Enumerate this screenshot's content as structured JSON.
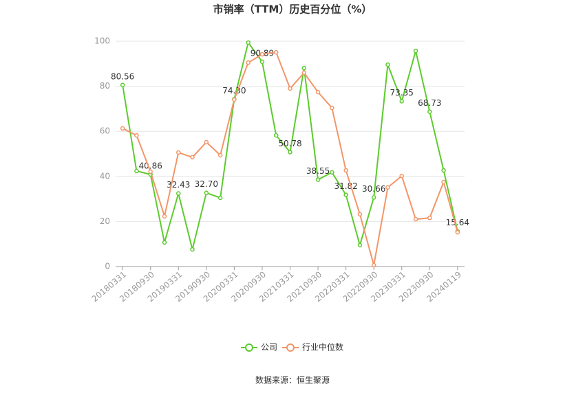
{
  "chart_data": {
    "type": "line",
    "title": "市销率（TTM）历史百分位（%）",
    "source": "数据来源：恒生聚源",
    "categories": [
      "20180331",
      null,
      "20180930",
      null,
      "20190331",
      null,
      "20190930",
      null,
      "20200331",
      null,
      "20200930",
      null,
      "20210331",
      null,
      "20210930",
      null,
      "20220331",
      null,
      "20220930",
      null,
      "20230331",
      null,
      "20230930",
      null,
      "20240119"
    ],
    "series": [
      {
        "name": "公司",
        "color": "#5ccc2c",
        "values": [
          80.56,
          42.4,
          40.86,
          10.7,
          32.43,
          7.6,
          32.7,
          30.5,
          74.3,
          99.4,
          90.89,
          58.2,
          50.78,
          88.1,
          38.55,
          41.8,
          31.82,
          9.5,
          30.66,
          89.6,
          73.35,
          95.7,
          68.73,
          42.7,
          15.64
        ],
        "value_labels": [
          "80.56",
          null,
          "40.86",
          null,
          "32.43",
          null,
          "32.70",
          null,
          "74.30",
          null,
          "90.89",
          null,
          "50.78",
          null,
          "38.55",
          null,
          "31.82",
          null,
          "30.66",
          null,
          "73.35",
          null,
          "68.73",
          null,
          "15.64"
        ]
      },
      {
        "name": "行业中位数",
        "color": "#f39568",
        "values": [
          61.3,
          58.2,
          42.1,
          22.3,
          50.6,
          48.5,
          55.2,
          49.4,
          74.1,
          90.5,
          94.2,
          95.1,
          79.0,
          86.0,
          77.4,
          70.4,
          42.7,
          23.2,
          0.6,
          35.1,
          40.2,
          21.0,
          21.6,
          37.5,
          15.2
        ]
      }
    ],
    "ylim": [
      0,
      100
    ],
    "yticks": [
      0,
      20,
      40,
      60,
      80,
      100
    ],
    "grid": true,
    "legend": "bottom"
  }
}
